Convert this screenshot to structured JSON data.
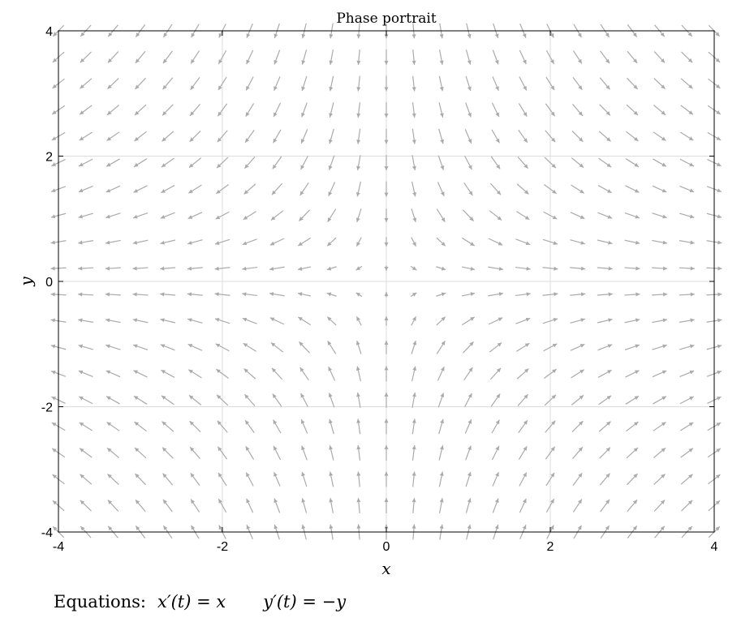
{
  "chart_data": {
    "type": "quiver",
    "title": "Phase portrait",
    "xlabel": "x",
    "ylabel": "y",
    "xlim": [
      -4,
      4
    ],
    "ylim": [
      -4,
      4
    ],
    "xticks": [
      -4,
      -2,
      0,
      2,
      4
    ],
    "yticks": [
      -4,
      -2,
      0,
      2,
      4
    ],
    "xtick_labels": [
      "-4",
      "-2",
      "0",
      "2",
      "4"
    ],
    "ytick_labels": [
      "-4",
      "-2",
      "0",
      "2",
      "4"
    ],
    "grid": true,
    "field": {
      "dx": "x",
      "dy": "-y"
    },
    "arrow_grid": {
      "x_count": 25,
      "y_count": 20
    },
    "arrow_color": "#aaaaaa",
    "grid_color": "#dddddd"
  },
  "equations": {
    "label": "Equations:",
    "x_eq": "x′(t) = x",
    "y_eq": "y′(t) = −y"
  }
}
